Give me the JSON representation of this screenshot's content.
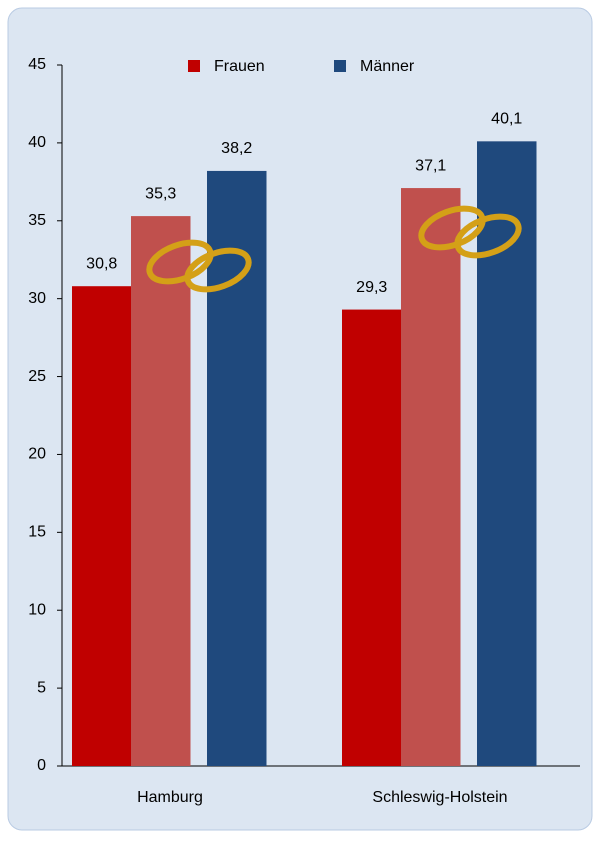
{
  "chart_data": {
    "type": "bar",
    "categories": [
      "Hamburg",
      "Schleswig-Holstein"
    ],
    "series": [
      {
        "name": "Frauen",
        "color": "#c00000",
        "values": [
          30.8,
          29.3
        ],
        "value_labels": [
          "30,8",
          "29,3"
        ]
      },
      {
        "color": "#c0504d",
        "values": [
          35.3,
          37.1
        ],
        "value_labels": [
          "35,3",
          "37,1"
        ]
      },
      {
        "name": "Männer",
        "color": "#1f497d",
        "values": [
          38.2,
          40.1
        ],
        "value_labels": [
          "38,2",
          "40,1"
        ]
      }
    ],
    "ylim": [
      0,
      45
    ],
    "yticks": [
      0,
      5,
      10,
      15,
      20,
      25,
      30,
      35,
      40,
      45
    ],
    "legend": "top"
  }
}
